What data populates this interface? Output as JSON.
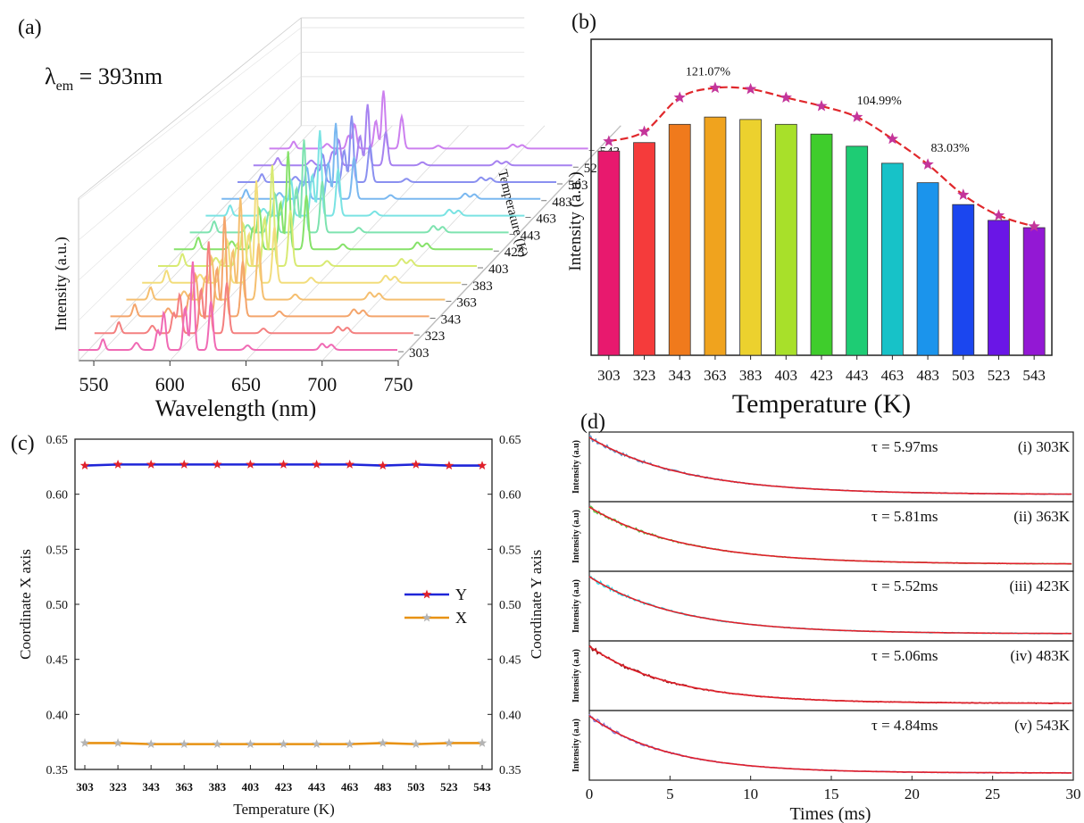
{
  "panels": {
    "a": {
      "label": "(a)",
      "annotation_lambda": "λ",
      "annotation_sub": "em",
      "annotation_value": " = 393nm",
      "xlabel": "Wavelength (nm)",
      "ylabel": "Intensity (a.u.)",
      "zlabel": "Temperature (K)"
    },
    "b": {
      "label": "(b)"
    },
    "c": {
      "label": "(c)"
    },
    "d": {
      "label": "(d)"
    }
  },
  "chart_data": [
    {
      "panel": "a",
      "type": "line",
      "title": "",
      "xlabel": "Wavelength (nm)",
      "ylabel": "Intensity (a.u.)",
      "zlabel": "Temperature (K)",
      "x_ticks": [
        550,
        600,
        650,
        700,
        750
      ],
      "xlim": [
        540,
        750
      ],
      "temperatures": [
        303,
        323,
        343,
        363,
        383,
        403,
        423,
        443,
        463,
        483,
        503,
        523,
        543
      ],
      "series_colors": [
        "#f06ab4",
        "#f48080",
        "#f4a56c",
        "#f5bf70",
        "#f2dd7c",
        "#d8ea73",
        "#86e26a",
        "#7ee3b0",
        "#7ae3e3",
        "#7ab8f0",
        "#8a90f0",
        "#a682f0",
        "#cc80ef"
      ],
      "peaks": [
        {
          "wavelength": 556,
          "height": 0.12
        },
        {
          "wavelength": 578,
          "height": 0.08
        },
        {
          "wavelength": 592,
          "height": 0.22
        },
        {
          "wavelength": 596,
          "height": 0.42
        },
        {
          "wavelength": 610,
          "height": 0.48
        },
        {
          "wavelength": 615,
          "height": 1.0
        },
        {
          "wavelength": 627,
          "height": 0.55
        },
        {
          "wavelength": 651,
          "height": 0.05
        },
        {
          "wavelength": 700,
          "height": 0.07
        },
        {
          "wavelength": 706,
          "height": 0.06
        }
      ],
      "series_scale": [
        0.84,
        0.87,
        0.95,
        0.97,
        0.97,
        0.96,
        0.93,
        0.88,
        0.81,
        0.72,
        0.63,
        0.58,
        0.55
      ]
    },
    {
      "panel": "b",
      "type": "bar",
      "title": "",
      "xlabel": "Temperature (K)",
      "ylabel": "Intensity (a.u.)",
      "categories": [
        "303",
        "323",
        "343",
        "363",
        "383",
        "403",
        "423",
        "443",
        "463",
        "483",
        "503",
        "523",
        "543"
      ],
      "ylim": [
        0,
        130
      ],
      "bar_values": [
        84,
        87.5,
        95,
        98,
        97,
        95,
        91,
        86,
        79,
        71,
        62,
        55.5,
        52.5
      ],
      "line_values": [
        88,
        92,
        106,
        110,
        109.5,
        106,
        102.5,
        98,
        89,
        78.5,
        66,
        57.5,
        53
      ],
      "bar_colors": [
        "#e8196e",
        "#f53b3b",
        "#f07a1c",
        "#f0a31e",
        "#ecd12e",
        "#a8e02a",
        "#3fcd2c",
        "#1ecc74",
        "#17c2c8",
        "#1b94ec",
        "#1b46ef",
        "#6a16e6",
        "#9318d4"
      ],
      "line_color": "#e0282c",
      "marker_color": "#c4359a",
      "annotations": [
        {
          "text": "121.07%",
          "index": 3
        },
        {
          "text": "104.99%",
          "index": 7
        },
        {
          "text": "83.03%",
          "index": 9
        }
      ]
    },
    {
      "panel": "c",
      "type": "line",
      "title": "",
      "xlabel": "Temperature (K)",
      "ylabel": "Coordinate X axis",
      "ylabel_right": "Coordinate Y axis",
      "categories": [
        "303",
        "323",
        "343",
        "363",
        "383",
        "403",
        "423",
        "443",
        "463",
        "483",
        "503",
        "523",
        "543"
      ],
      "ylim": [
        0.35,
        0.65
      ],
      "y_ticks": [
        "0.35",
        "0.40",
        "0.45",
        "0.50",
        "0.55",
        "0.60",
        "0.65"
      ],
      "legend_position": "center-right",
      "series": [
        {
          "name": "Y",
          "values": [
            0.626,
            0.627,
            0.627,
            0.627,
            0.627,
            0.627,
            0.627,
            0.627,
            0.627,
            0.626,
            0.627,
            0.626,
            0.626
          ],
          "color": "#1f25d8",
          "marker_color": "#e0202a"
        },
        {
          "name": "X",
          "values": [
            0.374,
            0.374,
            0.373,
            0.373,
            0.373,
            0.373,
            0.373,
            0.373,
            0.373,
            0.374,
            0.373,
            0.374,
            0.374
          ],
          "color": "#e89214",
          "marker_color": "#b4b4b4"
        }
      ]
    },
    {
      "panel": "d",
      "type": "line",
      "title": "",
      "xlabel": "Times (ms)",
      "ylabel": "Intensity (a.u)",
      "xlim": [
        0,
        30
      ],
      "x_ticks": [
        0,
        5,
        10,
        15,
        20,
        25,
        30
      ],
      "fit_color": "#e0202a",
      "series": [
        {
          "tau_label": "τ = 5.97ms",
          "temp_label": "(i) 303K",
          "tau_ms": 5.97,
          "color": "#5a8fc4"
        },
        {
          "tau_label": "τ = 5.81ms",
          "temp_label": "(ii) 363K",
          "tau_ms": 5.81,
          "color": "#5fc24a"
        },
        {
          "tau_label": "τ = 5.52ms",
          "temp_label": "(iii) 423K",
          "tau_ms": 5.52,
          "color": "#2ee0ea"
        },
        {
          "tau_label": "τ = 5.06ms",
          "temp_label": "(iv) 483K",
          "tau_ms": 5.06,
          "color": "#8c1212"
        },
        {
          "tau_label": "τ = 4.84ms",
          "temp_label": "(v) 543K",
          "tau_ms": 4.84,
          "color": "#8a7ad6"
        }
      ]
    }
  ]
}
